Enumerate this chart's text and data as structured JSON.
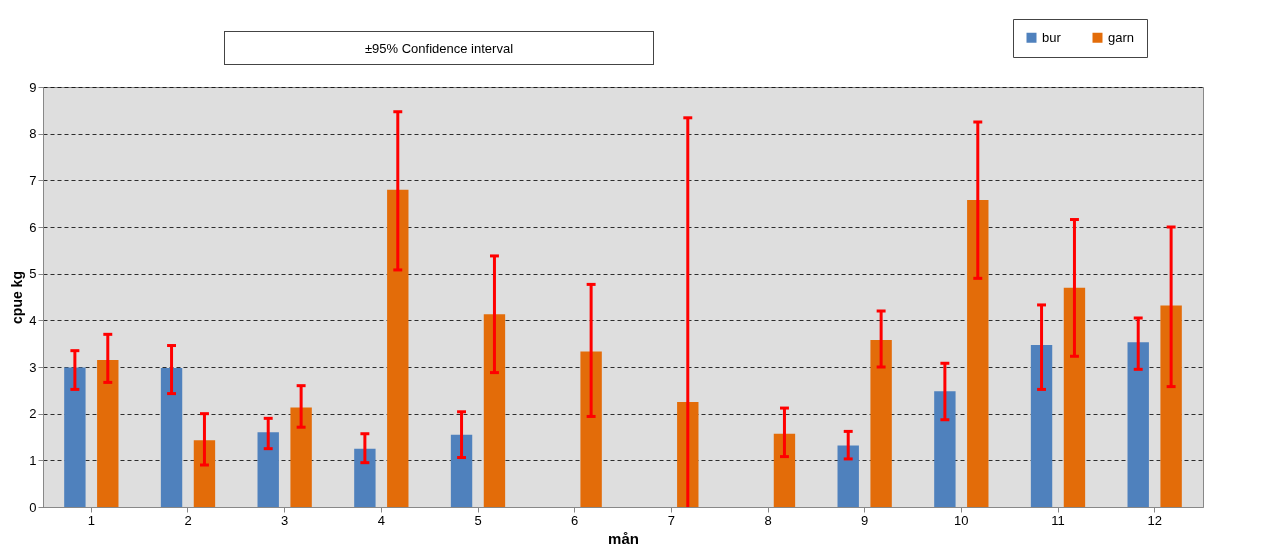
{
  "chart_data": {
    "type": "bar",
    "xlabel": "mån",
    "ylabel": "cpue kg",
    "annotations": [
      "±95% Confidence interval"
    ],
    "categories": [
      "1",
      "2",
      "3",
      "4",
      "5",
      "6",
      "7",
      "8",
      "9",
      "10",
      "11",
      "12"
    ],
    "series": [
      {
        "name": "bur",
        "color": "#4f81bd",
        "values": [
          2.99,
          2.98,
          1.6,
          1.25,
          1.55,
          0,
          0,
          0,
          1.32,
          2.48,
          3.47,
          3.53
        ],
        "errors": [
          [
            2.52,
            3.35
          ],
          [
            2.43,
            3.46
          ],
          [
            1.25,
            1.9
          ],
          [
            0.95,
            1.57
          ],
          [
            1.06,
            2.04
          ],
          null,
          null,
          null,
          [
            1.03,
            1.62
          ],
          [
            1.87,
            3.08
          ],
          [
            2.52,
            4.33
          ],
          [
            2.95,
            4.05
          ]
        ]
      },
      {
        "name": "garn",
        "color": "#e36c09",
        "values": [
          3.15,
          1.43,
          2.13,
          6.8,
          4.13,
          3.33,
          2.25,
          1.57,
          3.58,
          6.58,
          4.7,
          4.32
        ],
        "errors": [
          [
            2.67,
            3.7
          ],
          [
            0.9,
            2.0
          ],
          [
            1.71,
            2.6
          ],
          [
            5.08,
            8.47
          ],
          [
            2.88,
            5.38
          ],
          [
            1.94,
            4.77
          ],
          [
            0,
            8.34
          ],
          [
            1.08,
            2.12
          ],
          [
            3.0,
            4.2
          ],
          [
            4.9,
            8.25
          ],
          [
            3.23,
            6.16
          ],
          [
            2.58,
            6.0
          ]
        ]
      }
    ],
    "ylim": [
      0,
      9
    ],
    "yticks": [
      0,
      1,
      2,
      3,
      4,
      5,
      6,
      7,
      8,
      9
    ],
    "grid": "y",
    "legend": "top right"
  }
}
